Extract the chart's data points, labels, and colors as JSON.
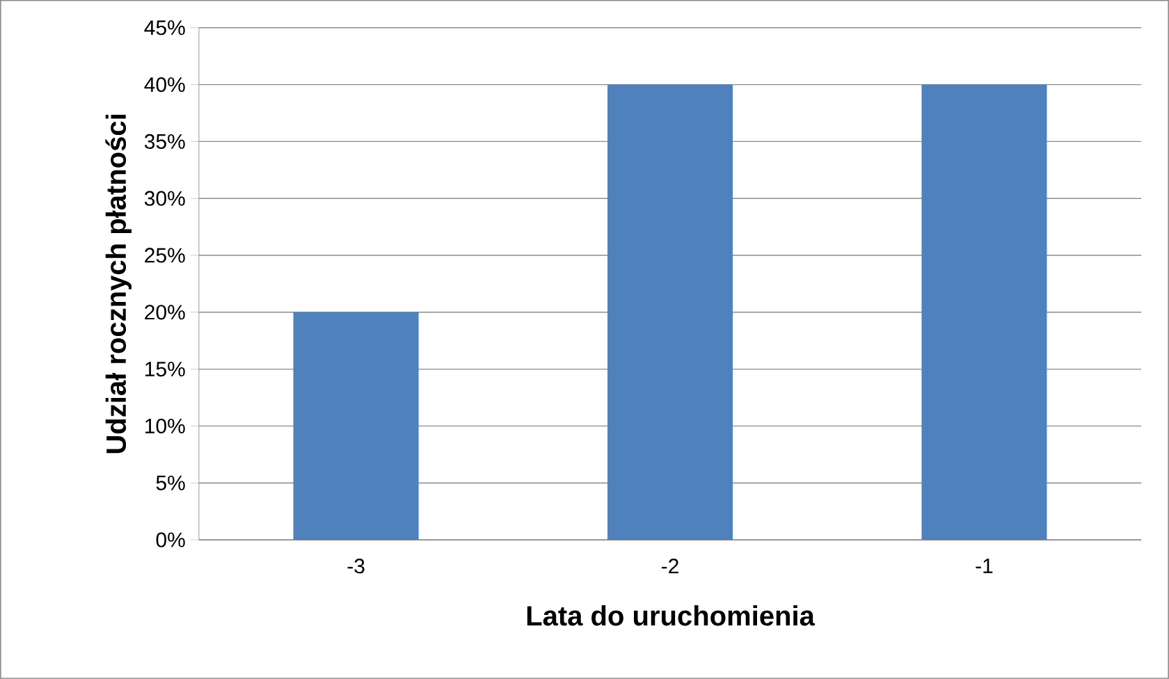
{
  "chart_data": {
    "type": "bar",
    "xlabel": "Lata do uruchomienia",
    "ylabel": "Udział rocznych płatności",
    "categories": [
      "-3",
      "-2",
      "-1"
    ],
    "values": [
      20,
      40,
      40
    ],
    "color": "#4f81bd",
    "ylim": [
      0,
      45
    ],
    "yticks": [
      {
        "value": 0,
        "label": "0%"
      },
      {
        "value": 5,
        "label": "5%"
      },
      {
        "value": 10,
        "label": "10%"
      },
      {
        "value": 15,
        "label": "15%"
      },
      {
        "value": 20,
        "label": "20%"
      },
      {
        "value": 25,
        "label": "25%"
      },
      {
        "value": 30,
        "label": "30%"
      },
      {
        "value": 35,
        "label": "35%"
      },
      {
        "value": 40,
        "label": "40%"
      },
      {
        "value": 45,
        "label": "45%"
      }
    ],
    "grid": "y"
  }
}
